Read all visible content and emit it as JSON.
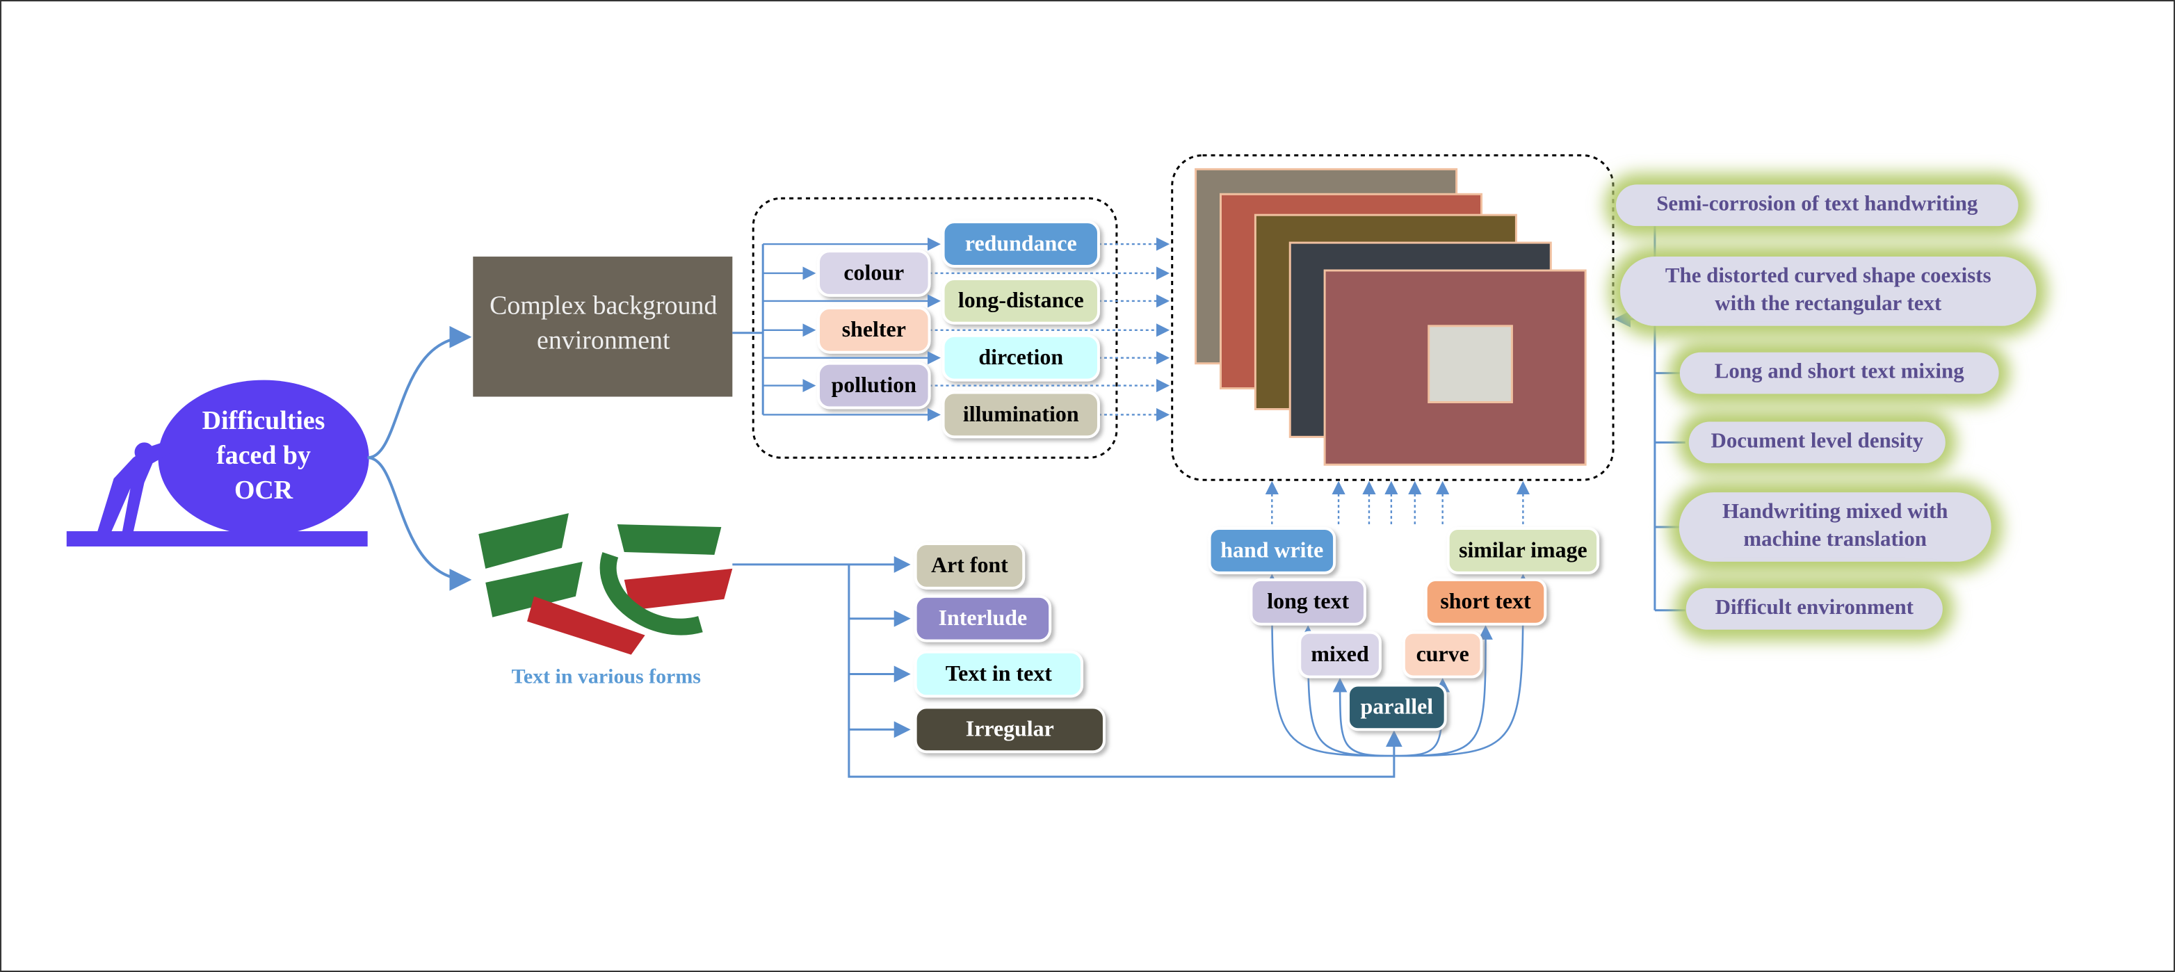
{
  "center": {
    "lines": [
      "Difficulties",
      "faced by",
      "OCR"
    ]
  },
  "background": {
    "lines": [
      "Complex background",
      "environment"
    ],
    "factors": [
      "redundance",
      "colour",
      "long-distance",
      "shelter",
      "dircetion",
      "pollution",
      "illumination"
    ]
  },
  "forms": {
    "caption": "Text in various forms",
    "items": [
      "Art font",
      "Interlude",
      "Text in text",
      "Irregular"
    ]
  },
  "scenes": {
    "items": [
      "hand write",
      "long text",
      "mixed",
      "parallel",
      "curve",
      "short text",
      "similar image"
    ]
  },
  "challenges": {
    "items": [
      [
        "Semi-corrosion of text handwriting"
      ],
      [
        "The distorted curved shape coexists",
        "with the rectangular text"
      ],
      [
        "Long and short text mixing"
      ],
      [
        "Document level density"
      ],
      [
        "Handwriting mixed with",
        "machine translation"
      ],
      [
        "Difficult environment"
      ]
    ]
  }
}
